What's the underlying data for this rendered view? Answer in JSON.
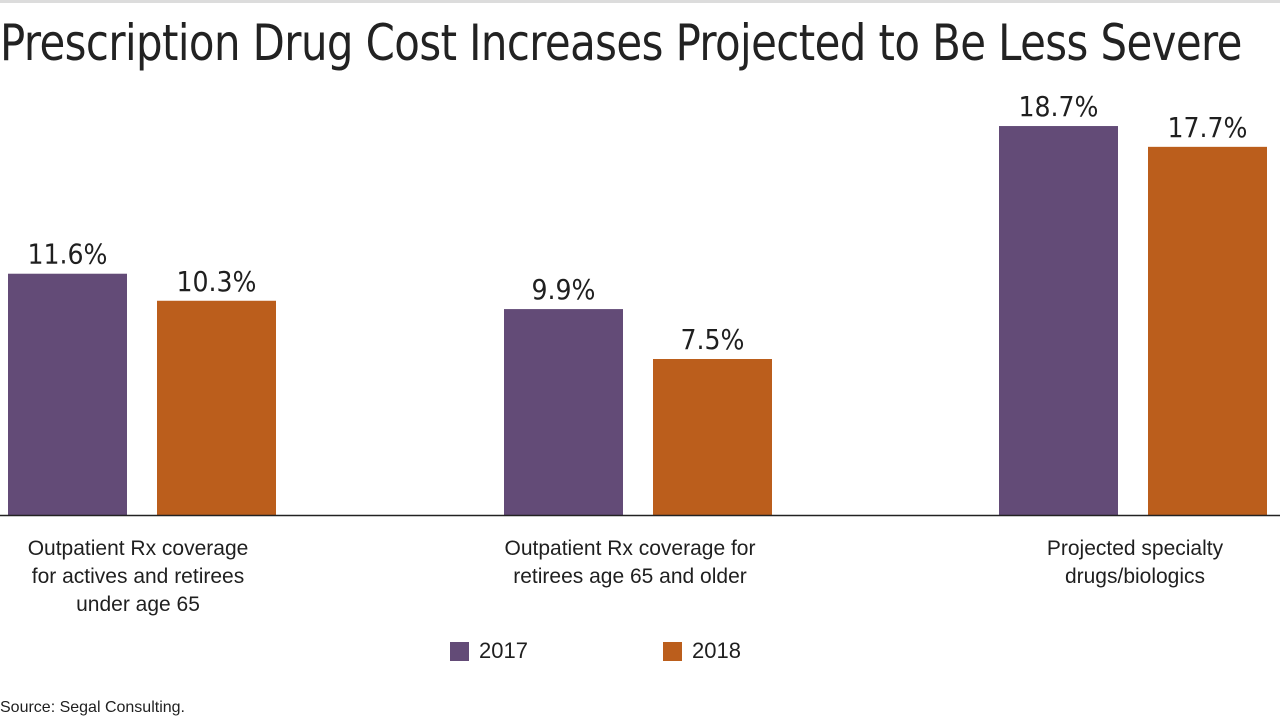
{
  "title": "Prescription Drug Cost Increases Projected to Be Less Severe",
  "source": "Source: Segal Consulting.",
  "colors": {
    "series_2017": "#634b77",
    "series_2018": "#bb5e1c",
    "baseline": "#222222"
  },
  "chart_data": {
    "type": "bar",
    "title": "Prescription Drug Cost Increases Projected to Be Less Severe",
    "categories": [
      "Outpatient Rx coverage\nfor actives and retirees\nunder age 65",
      "Outpatient Rx coverage for\nretirees age 65 and older",
      "Projected specialty\ndrugs/biologics"
    ],
    "series": [
      {
        "name": "2017",
        "values": [
          11.6,
          9.9,
          18.7
        ],
        "labels": [
          "11.6%",
          "9.9%",
          "18.7%"
        ]
      },
      {
        "name": "2018",
        "values": [
          10.3,
          7.5,
          17.7
        ],
        "labels": [
          "10.3%",
          "7.5%",
          "17.7%"
        ]
      }
    ],
    "value_suffix": "%",
    "xlabel": "",
    "ylabel": "",
    "ylim": [
      0,
      20
    ],
    "grid": false,
    "legend_position": "bottom-center",
    "data_labels": true
  },
  "legend": [
    {
      "label": "2017"
    },
    {
      "label": "2018"
    }
  ]
}
